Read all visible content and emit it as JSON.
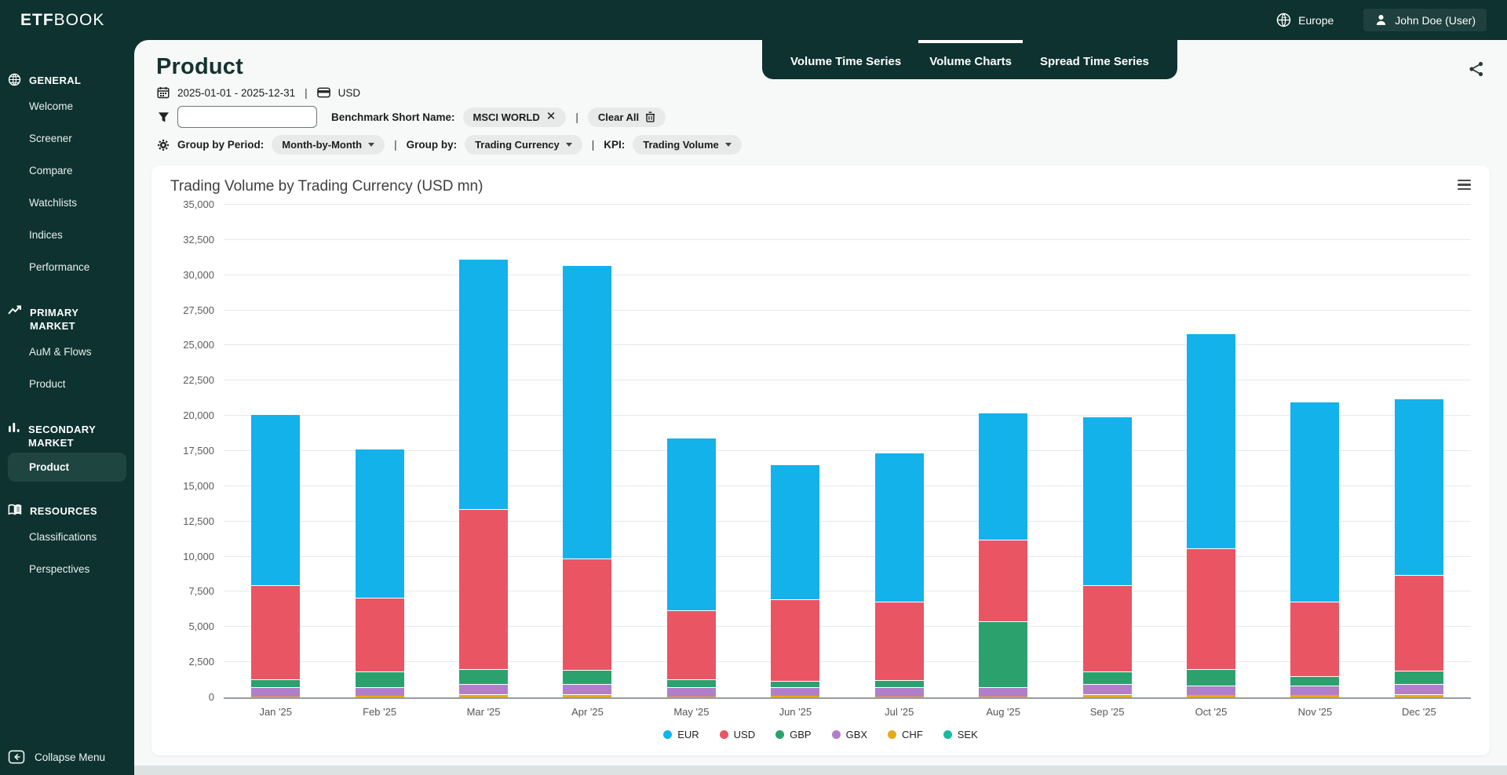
{
  "app": {
    "brand_bold": "ETF",
    "brand_light": "BOOK",
    "region": "Europe",
    "user": "John Doe (User)"
  },
  "sidebar": {
    "sections": [
      {
        "label": "GENERAL",
        "icon": "globe-icon",
        "items": [
          {
            "label": "Welcome",
            "active": false
          },
          {
            "label": "Screener",
            "active": false
          },
          {
            "label": "Compare",
            "active": false
          },
          {
            "label": "Watchlists",
            "active": false
          },
          {
            "label": "Indices",
            "active": false
          },
          {
            "label": "Performance",
            "active": false
          }
        ]
      },
      {
        "label": "PRIMARY MARKET",
        "icon": "trend-icon",
        "items": [
          {
            "label": "AuM & Flows",
            "active": false
          },
          {
            "label": "Product",
            "active": false
          }
        ]
      },
      {
        "label": "SECONDARY MARKET",
        "icon": "bar-chart-icon",
        "items": [
          {
            "label": "Product",
            "active": true
          }
        ]
      },
      {
        "label": "RESOURCES",
        "icon": "book-icon",
        "items": [
          {
            "label": "Classifications",
            "active": false
          },
          {
            "label": "Perspectives",
            "active": false
          }
        ]
      }
    ],
    "collapse_label": "Collapse Menu"
  },
  "page": {
    "title": "Product"
  },
  "tabs": [
    {
      "label": "Volume Time Series",
      "active": false
    },
    {
      "label": "Volume Charts",
      "active": true
    },
    {
      "label": "Spread Time Series",
      "active": false
    }
  ],
  "filters": {
    "date_range": "2025-01-01 - 2025-12-31",
    "currency": "USD",
    "search_value": "",
    "benchmark_label": "Benchmark Short Name:",
    "benchmark_value": "MSCI WORLD",
    "clear_all_label": "Clear All",
    "group_by_period_label": "Group by Period:",
    "group_by_period_value": "Month-by-Month",
    "group_by_label": "Group by:",
    "group_by_value": "Trading Currency",
    "kpi_label": "KPI:",
    "kpi_value": "Trading Volume"
  },
  "chart_data": {
    "type": "bar",
    "stacked": true,
    "title": "Trading Volume by Trading Currency (USD mn)",
    "categories": [
      "Jan '25",
      "Feb '25",
      "Mar '25",
      "Apr '25",
      "May '25",
      "Jun '25",
      "Jul '25",
      "Aug '25",
      "Sep '25",
      "Oct '25",
      "Nov '25",
      "Dec '25"
    ],
    "series": [
      {
        "name": "EUR",
        "color": "#14b2ea",
        "values": [
          12100,
          10500,
          17700,
          20800,
          12200,
          9500,
          10550,
          9000,
          11900,
          15200,
          14200,
          12500
        ]
      },
      {
        "name": "USD",
        "color": "#ea5564",
        "values": [
          6700,
          5250,
          11400,
          7950,
          4900,
          5800,
          5550,
          5800,
          6150,
          8600,
          5300,
          6800
        ]
      },
      {
        "name": "GBP",
        "color": "#2ba16e",
        "values": [
          550,
          1150,
          1050,
          1000,
          600,
          500,
          550,
          4700,
          900,
          1150,
          650,
          950
        ]
      },
      {
        "name": "GBX",
        "color": "#b17fc9",
        "values": [
          670,
          610,
          700,
          750,
          620,
          580,
          620,
          620,
          700,
          700,
          700,
          750
        ]
      },
      {
        "name": "CHF",
        "color": "#e5a91c",
        "values": [
          80,
          90,
          250,
          200,
          80,
          120,
          80,
          80,
          250,
          150,
          150,
          200
        ]
      },
      {
        "name": "SEK",
        "color": "#19bb9d",
        "values": [
          0,
          0,
          0,
          0,
          0,
          0,
          0,
          0,
          0,
          0,
          0,
          0
        ]
      }
    ],
    "ylabel": "",
    "xlabel": "",
    "ylim": [
      0,
      35000
    ],
    "ytick_step": 2500,
    "yticks": [
      "0",
      "2,500",
      "5,000",
      "7,500",
      "10,000",
      "12,500",
      "15,000",
      "17,500",
      "20,000",
      "22,500",
      "25,000",
      "27,500",
      "30,000",
      "32,500",
      "35,000"
    ],
    "grid": true,
    "legend_position": "bottom"
  }
}
